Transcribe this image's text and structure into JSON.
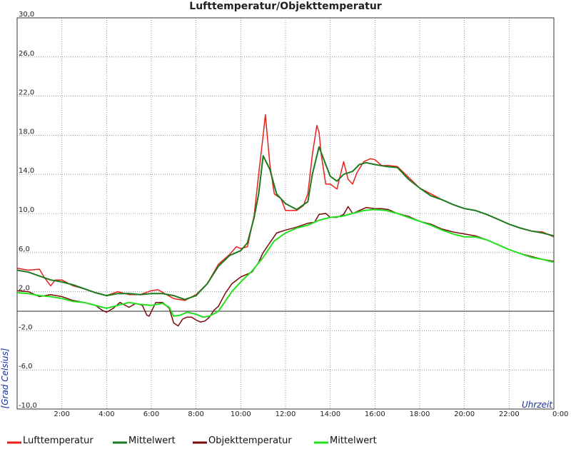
{
  "chart_data": {
    "type": "line",
    "title": "Lufttemperatur/Objekttemperatur",
    "xlabel": "Uhrzeit",
    "ylabel": "[Grad Celsius]",
    "xlim": [
      0,
      24
    ],
    "ylim": [
      -10,
      30
    ],
    "x_ticks": [
      {
        "x": 2,
        "label": "2:00"
      },
      {
        "x": 4,
        "label": "4:00"
      },
      {
        "x": 6,
        "label": "6:00"
      },
      {
        "x": 8,
        "label": "8:00"
      },
      {
        "x": 10,
        "label": "10:00"
      },
      {
        "x": 12,
        "label": "12:00"
      },
      {
        "x": 14,
        "label": "14:00"
      },
      {
        "x": 16,
        "label": "16:00"
      },
      {
        "x": 18,
        "label": "18:00"
      },
      {
        "x": 20,
        "label": "20:00"
      },
      {
        "x": 22,
        "label": "22:00"
      },
      {
        "x": 24,
        "label": "0:00"
      }
    ],
    "y_ticks": [
      {
        "y": -10,
        "label": "-10,0"
      },
      {
        "y": -6,
        "label": "-6,0"
      },
      {
        "y": -2,
        "label": "-2,0"
      },
      {
        "y": 2,
        "label": "2,0"
      },
      {
        "y": 6,
        "label": "6,0"
      },
      {
        "y": 10,
        "label": "10,0"
      },
      {
        "y": 14,
        "label": "14,0"
      },
      {
        "y": 18,
        "label": "18,0"
      },
      {
        "y": 22,
        "label": "22,0"
      },
      {
        "y": 26,
        "label": "26,0"
      },
      {
        "y": 30,
        "label": "30,0"
      }
    ],
    "zero_line": 0,
    "grid": true,
    "legend_position": "bottom",
    "series": [
      {
        "name": "Lufttemperatur",
        "color": "#e8201b",
        "x": [
          0,
          0.5,
          1.0,
          1.2,
          1.5,
          1.7,
          2.0,
          2.5,
          3.0,
          3.5,
          4.0,
          4.5,
          5.0,
          5.5,
          6.0,
          6.3,
          6.6,
          7.0,
          7.5,
          8.0,
          8.5,
          9.0,
          9.5,
          9.8,
          10.0,
          10.3,
          10.6,
          10.8,
          11.0,
          11.1,
          11.3,
          11.5,
          11.8,
          12.0,
          12.5,
          12.8,
          13.0,
          13.2,
          13.4,
          13.5,
          13.6,
          13.8,
          14.0,
          14.3,
          14.6,
          14.8,
          15.0,
          15.2,
          15.5,
          15.8,
          16.0,
          16.3,
          16.6,
          17.0,
          17.5,
          18.0,
          18.5,
          19.0,
          19.5,
          20.0,
          20.5,
          21.0,
          21.5,
          22.0,
          22.5,
          23.0,
          23.5,
          24.0
        ],
        "y": [
          4.4,
          4.2,
          4.3,
          3.5,
          2.6,
          3.2,
          3.2,
          2.6,
          2.3,
          1.9,
          1.6,
          2.0,
          1.7,
          1.7,
          2.1,
          2.2,
          1.8,
          1.3,
          1.1,
          1.7,
          2.8,
          4.8,
          5.8,
          6.6,
          6.4,
          6.6,
          9.8,
          14.0,
          18.0,
          20.1,
          15.0,
          12.0,
          11.5,
          10.3,
          10.3,
          10.8,
          12.0,
          16.0,
          19.0,
          18.3,
          16.0,
          13.0,
          13.0,
          12.5,
          15.3,
          13.5,
          13.0,
          14.2,
          15.3,
          15.6,
          15.5,
          14.9,
          14.9,
          14.8,
          13.7,
          12.6,
          12.0,
          11.4,
          10.9,
          10.5,
          10.3,
          9.9,
          9.4,
          8.9,
          8.5,
          8.2,
          8.1,
          7.6
        ]
      },
      {
        "name": "Mittelwert",
        "color": "#1e7a1e",
        "x": [
          0,
          0.5,
          1.0,
          1.5,
          2.0,
          2.5,
          3.0,
          3.5,
          4.0,
          4.5,
          5.0,
          5.5,
          6.0,
          6.5,
          7.0,
          7.5,
          8.0,
          8.5,
          9.0,
          9.5,
          10.0,
          10.3,
          10.6,
          10.8,
          11.0,
          11.3,
          11.6,
          12.0,
          12.5,
          13.0,
          13.2,
          13.5,
          13.8,
          14.0,
          14.3,
          14.6,
          15.0,
          15.3,
          15.6,
          16.0,
          16.5,
          17.0,
          17.5,
          18.0,
          18.5,
          19.0,
          19.5,
          20.0,
          20.5,
          21.0,
          21.5,
          22.0,
          22.5,
          23.0,
          23.5,
          24.0
        ],
        "y": [
          4.2,
          4.0,
          3.6,
          3.2,
          3.0,
          2.7,
          2.3,
          1.9,
          1.6,
          1.8,
          1.8,
          1.7,
          1.8,
          1.8,
          1.6,
          1.2,
          1.6,
          2.8,
          4.6,
          5.7,
          6.2,
          7.0,
          9.6,
          12.0,
          15.9,
          14.5,
          12.0,
          11.0,
          10.4,
          11.2,
          14.0,
          16.8,
          15.0,
          13.8,
          13.3,
          14.0,
          14.3,
          15.0,
          15.2,
          15.0,
          14.8,
          14.7,
          13.5,
          12.6,
          11.8,
          11.4,
          10.9,
          10.5,
          10.3,
          9.9,
          9.4,
          8.9,
          8.5,
          8.2,
          8.0,
          7.7
        ]
      },
      {
        "name": "Objekttemperatur",
        "color": "#7a0a0a",
        "x": [
          0,
          0.5,
          1.0,
          1.5,
          2.0,
          2.5,
          3.0,
          3.5,
          3.8,
          4.0,
          4.3,
          4.6,
          5.0,
          5.3,
          5.6,
          5.8,
          5.9,
          6.2,
          6.5,
          6.8,
          7.0,
          7.2,
          7.4,
          7.6,
          7.8,
          8.0,
          8.2,
          8.4,
          8.6,
          8.8,
          9.0,
          9.3,
          9.6,
          10.0,
          10.5,
          10.8,
          11.0,
          11.3,
          11.6,
          12.0,
          12.5,
          13.0,
          13.3,
          13.5,
          13.8,
          14.0,
          14.3,
          14.6,
          14.8,
          15.0,
          15.3,
          15.6,
          16.0,
          16.3,
          16.6,
          17.0,
          17.5,
          18.0,
          18.5,
          19.0,
          19.5,
          20.0,
          20.5,
          21.0,
          21.5,
          22.0,
          22.5,
          23.0,
          23.5,
          24.0
        ],
        "y": [
          2.1,
          2.0,
          1.5,
          1.7,
          1.5,
          1.1,
          0.9,
          0.6,
          0.1,
          -0.1,
          0.3,
          0.9,
          0.4,
          0.8,
          0.6,
          -0.4,
          -0.5,
          0.9,
          0.9,
          0.3,
          -1.2,
          -1.5,
          -0.8,
          -0.6,
          -0.6,
          -0.9,
          -1.1,
          -1.0,
          -0.6,
          0.1,
          0.5,
          1.8,
          2.8,
          3.5,
          4.0,
          5.0,
          6.0,
          7.0,
          8.0,
          8.3,
          8.6,
          9.0,
          9.1,
          9.9,
          10.0,
          9.6,
          9.6,
          9.9,
          10.7,
          10.0,
          10.3,
          10.6,
          10.5,
          10.5,
          10.4,
          10.0,
          9.7,
          9.2,
          8.9,
          8.4,
          8.1,
          7.9,
          7.7,
          7.3,
          6.8,
          6.3,
          5.9,
          5.6,
          5.3,
          5.1
        ]
      },
      {
        "name": "Mittelwert",
        "color": "#22e01e",
        "x": [
          0,
          0.5,
          1.0,
          1.5,
          2.0,
          2.5,
          3.0,
          3.5,
          4.0,
          4.5,
          5.0,
          5.5,
          6.0,
          6.5,
          6.8,
          7.0,
          7.3,
          7.6,
          8.0,
          8.3,
          8.6,
          9.0,
          9.3,
          9.6,
          10.0,
          10.5,
          11.0,
          11.5,
          12.0,
          12.5,
          13.0,
          13.5,
          14.0,
          14.5,
          15.0,
          15.5,
          16.0,
          16.5,
          17.0,
          17.5,
          18.0,
          18.5,
          19.0,
          19.5,
          20.0,
          20.5,
          21.0,
          21.5,
          22.0,
          22.5,
          23.0,
          23.5,
          24.0
        ],
        "y": [
          1.9,
          1.8,
          1.6,
          1.5,
          1.3,
          1.0,
          0.9,
          0.6,
          0.3,
          0.6,
          0.9,
          0.7,
          0.6,
          0.8,
          0.4,
          -0.5,
          -0.4,
          -0.1,
          -0.3,
          -0.6,
          -0.5,
          0.0,
          1.0,
          2.0,
          3.0,
          4.1,
          5.5,
          7.2,
          8.0,
          8.5,
          8.8,
          9.3,
          9.6,
          9.7,
          10.0,
          10.3,
          10.4,
          10.3,
          10.0,
          9.6,
          9.2,
          8.8,
          8.3,
          7.9,
          7.6,
          7.6,
          7.3,
          6.8,
          6.3,
          5.9,
          5.5,
          5.3,
          5.0
        ]
      }
    ]
  }
}
